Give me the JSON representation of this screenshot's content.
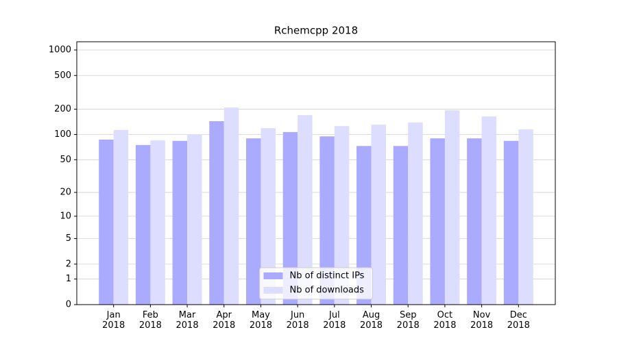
{
  "chart_data": {
    "type": "bar",
    "title": "Rchemcpp 2018",
    "categories": [
      "Jan\n2018",
      "Feb\n2018",
      "Mar\n2018",
      "Apr\n2018",
      "May\n2018",
      "Jun\n2018",
      "Jul\n2018",
      "Aug\n2018",
      "Sep\n2018",
      "Oct\n2018",
      "Nov\n2018",
      "Dec\n2018"
    ],
    "series": [
      {
        "name": "Nb of distinct IPs",
        "color": "#aaaaff",
        "values": [
          87,
          75,
          84,
          144,
          90,
          107,
          95,
          73,
          73,
          90,
          90,
          84
        ]
      },
      {
        "name": "Nb of downloads",
        "color": "#ddddff",
        "values": [
          113,
          85,
          101,
          209,
          119,
          170,
          126,
          131,
          139,
          194,
          164,
          115
        ]
      }
    ],
    "yscale": "log1p",
    "ylim": [
      0,
      1250
    ],
    "yticks": [
      0,
      1,
      2,
      5,
      10,
      20,
      50,
      100,
      200,
      500,
      1000
    ],
    "grid": true,
    "legend": "lower center"
  }
}
